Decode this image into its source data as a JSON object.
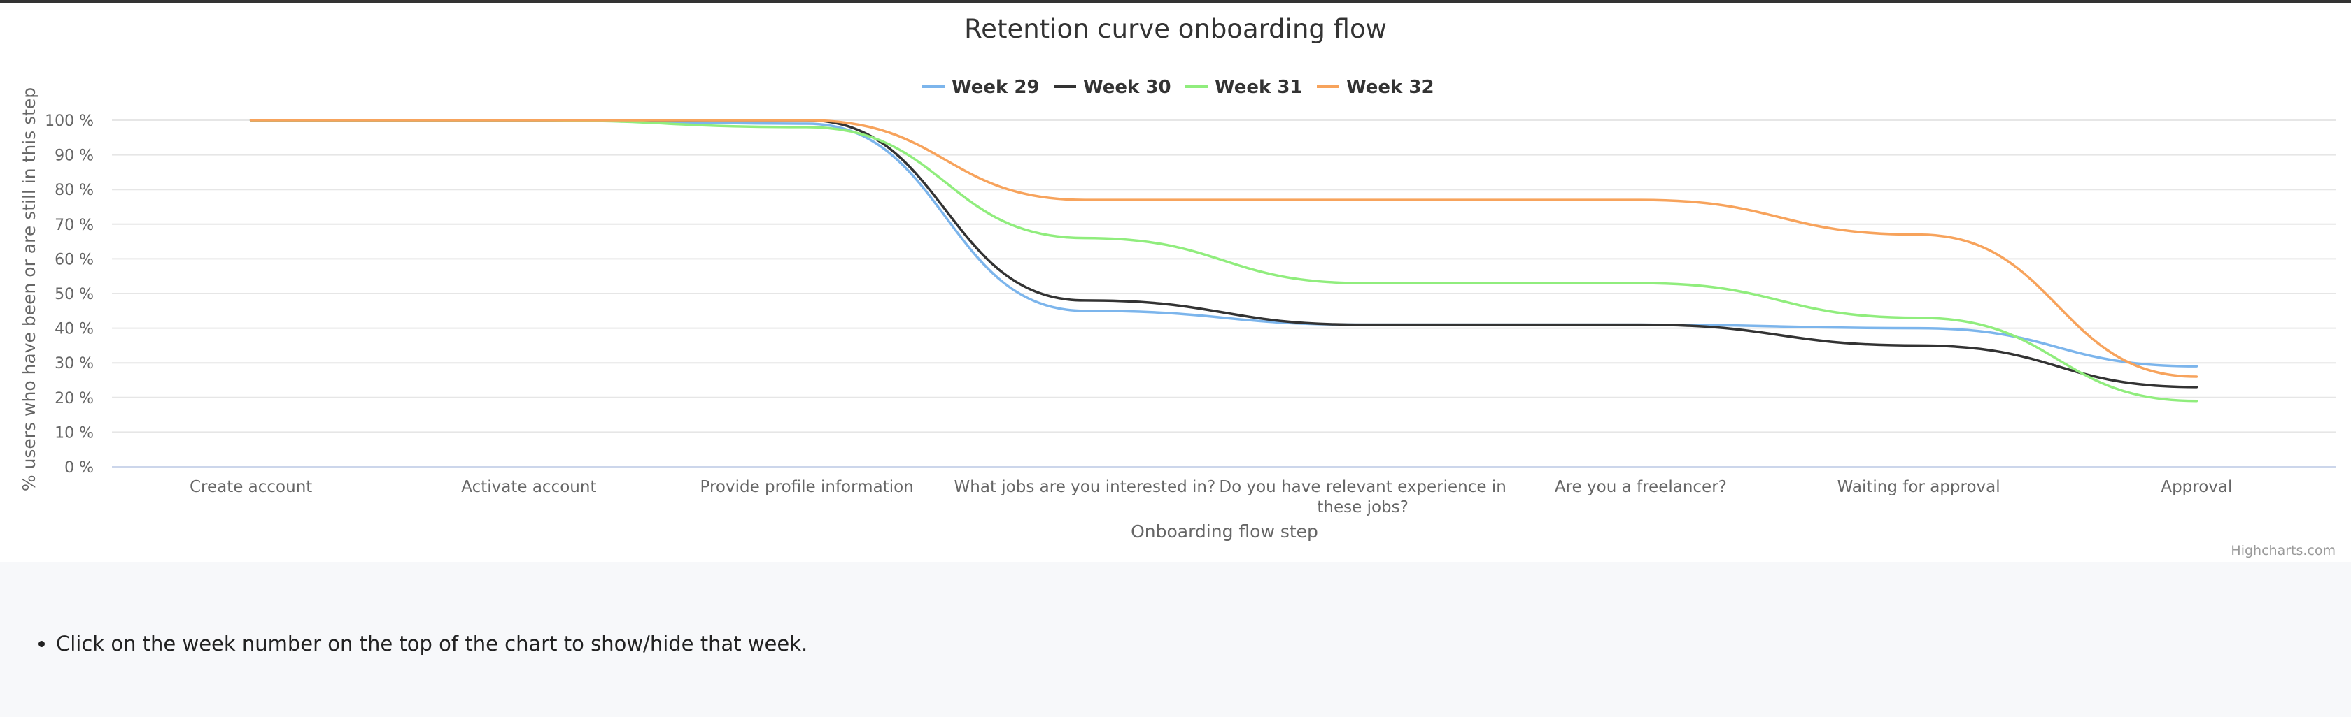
{
  "chart_data": {
    "type": "line",
    "title": "Retention curve onboarding flow",
    "xlabel": "Onboarding flow step",
    "ylabel": "% users who have been or are still in this step",
    "categories": [
      "Create account",
      "Activate account",
      "Provide profile information",
      "What jobs are you interested in?",
      "Do you have relevant experience in these jobs?",
      "Are you a freelancer?",
      "Waiting for approval",
      "Approval"
    ],
    "ylim": [
      0,
      100
    ],
    "yticks": [
      "0 %",
      "10 %",
      "20 %",
      "30 %",
      "40 %",
      "50 %",
      "60 %",
      "70 %",
      "80 %",
      "90 %",
      "100 %"
    ],
    "grid": true,
    "legend_position": "top-center",
    "series": [
      {
        "name": "Week 29",
        "color": "#7cb5ec",
        "values": [
          100,
          100,
          99,
          45,
          41,
          41,
          40,
          29
        ]
      },
      {
        "name": "Week 30",
        "color": "#333333",
        "values": [
          100,
          100,
          100,
          48,
          41,
          41,
          35,
          23
        ]
      },
      {
        "name": "Week 31",
        "color": "#90ed7d",
        "values": [
          100,
          100,
          98,
          66,
          53,
          53,
          43,
          19
        ]
      },
      {
        "name": "Week 32",
        "color": "#f7a35c",
        "values": [
          100,
          100,
          100,
          77,
          77,
          77,
          67,
          26
        ]
      }
    ]
  },
  "credits": "Highcharts.com",
  "notes": {
    "items": [
      "Click on the week number on the top of the chart to show/hide that week."
    ]
  }
}
